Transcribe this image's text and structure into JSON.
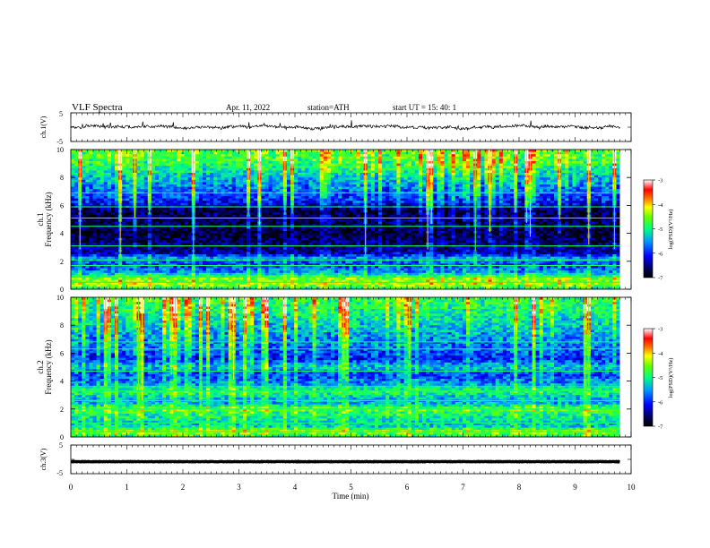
{
  "chart_data": {
    "type": "heatmap",
    "header": {
      "title": "VLF  Spectra",
      "date": "Apr. 11, 2022",
      "station": "station=ATH",
      "start": "start  UT  =    15: 40: 1"
    },
    "x_axis": {
      "label": "Time  (min)",
      "range": [
        0,
        10
      ],
      "ticks": [
        0,
        1,
        2,
        3,
        4,
        5,
        6,
        7,
        8,
        9,
        10
      ],
      "data_end": 9.8
    },
    "waveform_panels": [
      {
        "id": "ch1",
        "ylabel": "ch.1(V)",
        "yticks": [
          "5",
          "-5"
        ],
        "yrange": [
          -5,
          5
        ],
        "style": "noise",
        "level": 0.0,
        "amplitude": 1.1
      },
      {
        "id": "ch3",
        "ylabel": "ch.3(V)",
        "yticks": [
          "5",
          "-5"
        ],
        "yrange": [
          -5,
          5
        ],
        "style": "flat",
        "level": -0.8,
        "amplitude": 0.15
      }
    ],
    "spectrogram_panels": [
      {
        "id": "ch1",
        "ylabel_line1": "ch.1",
        "ylabel_line2": "Frequency  (kHz)",
        "yrange_khz": [
          0,
          10
        ],
        "yticks": [
          0,
          2,
          4,
          6,
          8,
          10
        ],
        "colorbar": {
          "label": "log(PSD)(V²/Hz)",
          "range": [
            -7,
            -3
          ],
          "ticks": [
            "-3",
            "-4",
            "-5",
            "-6",
            "-7"
          ]
        },
        "band_profile": [
          {
            "f": 0.0,
            "v": -5.2
          },
          {
            "f": 0.3,
            "v": -4.4
          },
          {
            "f": 0.8,
            "v": -4.6
          },
          {
            "f": 1.2,
            "v": -5.6
          },
          {
            "f": 1.8,
            "v": -6.0
          },
          {
            "f": 2.2,
            "v": -5.5
          },
          {
            "f": 2.6,
            "v": -6.5
          },
          {
            "f": 3.2,
            "v": -6.6
          },
          {
            "f": 4.0,
            "v": -6.9
          },
          {
            "f": 5.0,
            "v": -6.7
          },
          {
            "f": 5.6,
            "v": -6.9
          },
          {
            "f": 6.2,
            "v": -6.2
          },
          {
            "f": 7.0,
            "v": -5.9
          },
          {
            "f": 8.0,
            "v": -5.5
          },
          {
            "f": 9.0,
            "v": -5.0
          },
          {
            "f": 10.0,
            "v": -4.8
          }
        ],
        "lines_khz": [
          0.5,
          0.9,
          1.7,
          2.1,
          3.1,
          4.5,
          5.1,
          5.9,
          6.9
        ]
      },
      {
        "id": "ch2",
        "ylabel_line1": "ch.2",
        "ylabel_line2": "Frequency  (kHz)",
        "yrange_khz": [
          0,
          10
        ],
        "yticks": [
          0,
          2,
          4,
          6,
          8,
          10
        ],
        "colorbar": {
          "label": "log(PSD)(V²/Hz)",
          "range": [
            -7,
            -3
          ],
          "ticks": [
            "-3",
            "-4",
            "-5",
            "-6",
            "-7"
          ]
        },
        "band_profile": [
          {
            "f": 0.0,
            "v": -5.0
          },
          {
            "f": 0.4,
            "v": -4.5
          },
          {
            "f": 0.8,
            "v": -5.4
          },
          {
            "f": 1.2,
            "v": -5.2
          },
          {
            "f": 1.7,
            "v": -5.0
          },
          {
            "f": 2.0,
            "v": -4.6
          },
          {
            "f": 2.4,
            "v": -5.5
          },
          {
            "f": 2.8,
            "v": -5.4
          },
          {
            "f": 3.3,
            "v": -4.9
          },
          {
            "f": 3.8,
            "v": -5.6
          },
          {
            "f": 4.5,
            "v": -6.0
          },
          {
            "f": 5.0,
            "v": -5.4
          },
          {
            "f": 5.6,
            "v": -6.1
          },
          {
            "f": 6.5,
            "v": -5.8
          },
          {
            "f": 7.5,
            "v": -5.6
          },
          {
            "f": 8.5,
            "v": -5.3
          },
          {
            "f": 10.0,
            "v": -5.0
          }
        ],
        "lines_khz": [
          0.4,
          1.0,
          2.0,
          2.6,
          3.3,
          3.6,
          4.7,
          6.3,
          6.8
        ]
      }
    ]
  }
}
